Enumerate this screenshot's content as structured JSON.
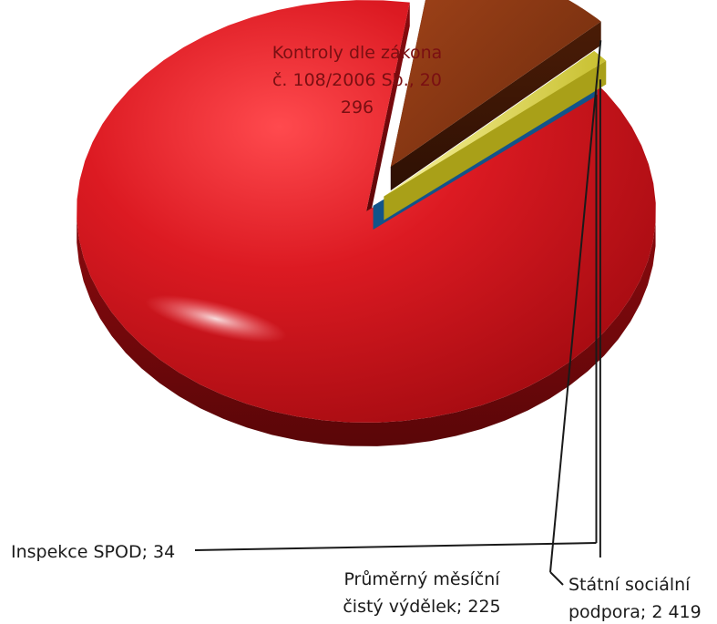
{
  "chart_data": {
    "type": "pie",
    "title": "",
    "slices": [
      {
        "label_lines": [
          "Kontroly dle zákona",
          "č. 108/2006 Sb., 20",
          "296"
        ],
        "value": 20296,
        "color": "#d41820",
        "label_position": "inside-top"
      },
      {
        "label_lines": [
          "Státní sociální",
          "podpora; 2 419"
        ],
        "value": 2419,
        "color": "#7a3010",
        "label_position": "callout-bottom-right"
      },
      {
        "label_lines": [
          "Průměrný měsíční",
          "čistý výdělek; 225"
        ],
        "value": 225,
        "color": "#e8e060",
        "label_position": "callout-bottom"
      },
      {
        "label_lines": [
          "Inspekce SPOD; 34"
        ],
        "value": 34,
        "color": "#2a8ac8",
        "label_position": "callout-left"
      }
    ],
    "legend": "none",
    "style": "3d-exploded"
  }
}
